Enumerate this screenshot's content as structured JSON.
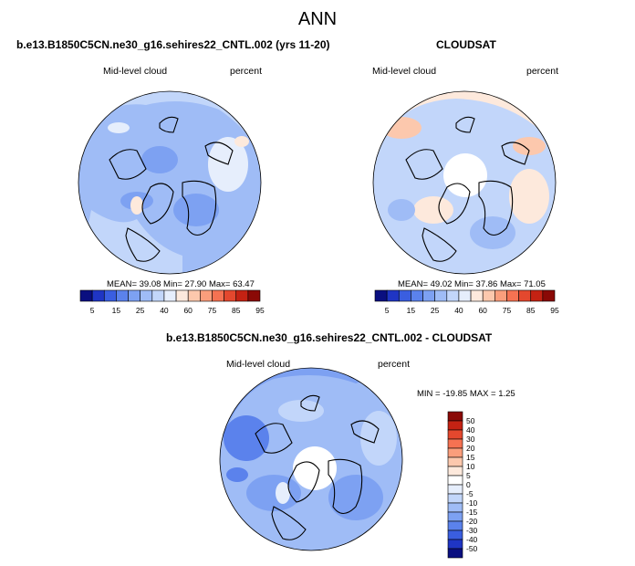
{
  "figure": {
    "title": "ANN",
    "panels": [
      {
        "title": "b.e13.B1850C5CN.ne30_g16.sehires22_CNTL.002 (yrs 11-20)",
        "left_label": "Mid-level cloud",
        "right_label": "percent",
        "stats": "MEAN=  39.08  Min=  27.90  Max=  63.47"
      },
      {
        "title": "CLOUDSAT",
        "left_label": "Mid-level cloud",
        "right_label": "percent",
        "stats": "MEAN=  49.02  Min=  37.86  Max=  71.05"
      },
      {
        "title": "b.e13.B1850C5CN.ne30_g16.sehires22_CNTL.002 - CLOUDSAT",
        "left_label": "Mid-level cloud",
        "right_label": "percent",
        "stats": "MIN = -19.85 MAX =   1.25"
      }
    ],
    "colorbar_abs": {
      "tick_labels": [
        "5",
        "15",
        "25",
        "40",
        "60",
        "75",
        "85",
        "95"
      ],
      "colors": [
        "#0a0f80",
        "#1f35c4",
        "#3a5ee0",
        "#5b82ec",
        "#7da1f2",
        "#9fbcf6",
        "#c2d6fa",
        "#e6eefc",
        "#fde9dc",
        "#fcc8ad",
        "#fa9e7c",
        "#f57252",
        "#e4482e",
        "#c42213",
        "#8a0906"
      ]
    },
    "colorbar_diff": {
      "tick_labels": [
        "50",
        "40",
        "30",
        "20",
        "15",
        "10",
        "5",
        "0",
        "-5",
        "-10",
        "-15",
        "-20",
        "-30",
        "-40",
        "-50"
      ],
      "colors": [
        "#8a0906",
        "#c42213",
        "#e4482e",
        "#f57252",
        "#fa9e7c",
        "#fcc8ad",
        "#fde9dc",
        "#ffffff",
        "#e6eefc",
        "#c2d6fa",
        "#9fbcf6",
        "#7da1f2",
        "#5b82ec",
        "#3a5ee0",
        "#1f35c4",
        "#0a0f80"
      ]
    }
  }
}
